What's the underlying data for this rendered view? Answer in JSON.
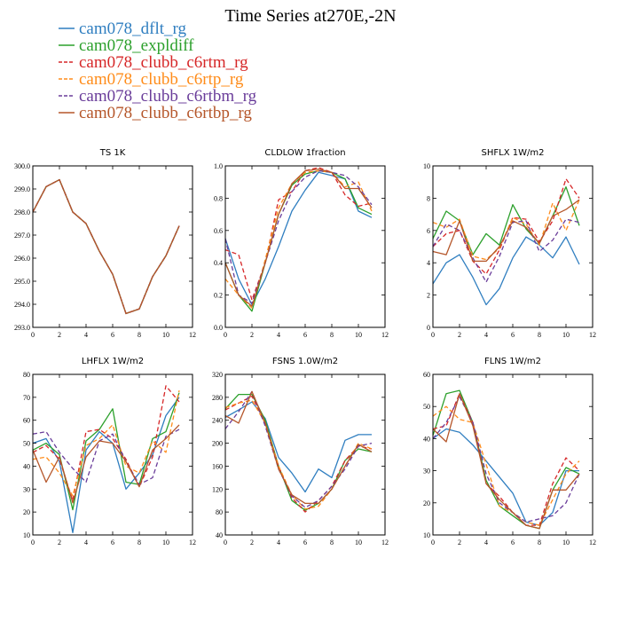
{
  "figure_title": "Time Series at270E,-2N",
  "colors": {
    "cam078_dflt_rg": "#2f7ec0",
    "cam078_expldiff": "#2ca02c",
    "cam078_clubb_c6rtm_rg": "#d62728",
    "cam078_clubb_c6rtp_rg": "#ff8c1a",
    "cam078_clubb_c6rtbm_rg": "#6a3d9a",
    "cam078_clubb_c6rtbp_rg": "#b5562a"
  },
  "legend": [
    {
      "name": "cam078_dflt_rg",
      "color": "#2f7ec0",
      "dash": "solid"
    },
    {
      "name": "cam078_expldiff",
      "color": "#2ca02c",
      "dash": "solid"
    },
    {
      "name": "cam078_clubb_c6rtm_rg",
      "color": "#d62728",
      "dash": "dashed"
    },
    {
      "name": "cam078_clubb_c6rtp_rg",
      "color": "#ff8c1a",
      "dash": "dashed"
    },
    {
      "name": "cam078_clubb_c6rtbm_rg",
      "color": "#6a3d9a",
      "dash": "dashed"
    },
    {
      "name": "cam078_clubb_c6rtbp_rg",
      "color": "#b5562a",
      "dash": "solid"
    }
  ],
  "chart_data": [
    {
      "type": "line",
      "title": "TS  1K",
      "x": [
        0,
        1,
        2,
        3,
        4,
        5,
        6,
        7,
        8,
        9,
        10,
        11
      ],
      "xlim": [
        0,
        12
      ],
      "xticks": [
        0,
        2,
        4,
        6,
        8,
        10,
        12
      ],
      "ylim": [
        293.0,
        300.0
      ],
      "yticks": [
        "293.0",
        "294.0",
        "295.0",
        "296.0",
        "297.0",
        "298.0",
        "299.0",
        "300.0"
      ],
      "series": [
        {
          "name": "cam078_dflt_rg",
          "values": [
            298.0,
            299.1,
            299.4,
            298.0,
            297.5,
            296.3,
            295.3,
            293.6,
            293.8,
            295.2,
            296.1,
            297.4
          ]
        },
        {
          "name": "cam078_expldiff",
          "values": [
            298.0,
            299.1,
            299.4,
            298.0,
            297.5,
            296.3,
            295.3,
            293.6,
            293.8,
            295.2,
            296.1,
            297.4
          ]
        },
        {
          "name": "cam078_clubb_c6rtm_rg",
          "values": [
            298.0,
            299.1,
            299.4,
            298.0,
            297.5,
            296.3,
            295.3,
            293.6,
            293.8,
            295.2,
            296.1,
            297.4
          ]
        },
        {
          "name": "cam078_clubb_c6rtp_rg",
          "values": [
            298.0,
            299.1,
            299.4,
            298.0,
            297.5,
            296.3,
            295.3,
            293.6,
            293.8,
            295.2,
            296.1,
            297.4
          ]
        },
        {
          "name": "cam078_clubb_c6rtbm_rg",
          "values": [
            298.0,
            299.1,
            299.4,
            298.0,
            297.5,
            296.3,
            295.3,
            293.6,
            293.8,
            295.2,
            296.1,
            297.4
          ]
        },
        {
          "name": "cam078_clubb_c6rtbp_rg",
          "values": [
            298.0,
            299.1,
            299.4,
            298.0,
            297.5,
            296.3,
            295.3,
            293.6,
            293.8,
            295.2,
            296.1,
            297.4
          ]
        }
      ]
    },
    {
      "type": "line",
      "title": "CLDLOW  1fraction",
      "x": [
        0,
        1,
        2,
        3,
        4,
        5,
        6,
        7,
        8,
        9,
        10,
        11
      ],
      "xlim": [
        0,
        12
      ],
      "xticks": [
        0,
        2,
        4,
        6,
        8,
        10,
        12
      ],
      "ylim": [
        0.0,
        1.0
      ],
      "yticks": [
        "0.0",
        "0.2",
        "0.4",
        "0.6",
        "0.8",
        "1.0"
      ],
      "series": [
        {
          "name": "cam078_dflt_rg",
          "values": [
            0.55,
            0.3,
            0.14,
            0.3,
            0.5,
            0.72,
            0.85,
            0.96,
            0.94,
            0.92,
            0.72,
            0.68
          ]
        },
        {
          "name": "cam078_expldiff",
          "values": [
            0.4,
            0.2,
            0.1,
            0.4,
            0.7,
            0.88,
            0.95,
            0.97,
            0.96,
            0.92,
            0.74,
            0.7
          ]
        },
        {
          "name": "cam078_clubb_c6rtm_rg",
          "values": [
            0.48,
            0.45,
            0.17,
            0.4,
            0.79,
            0.84,
            0.97,
            0.99,
            0.96,
            0.82,
            0.75,
            0.77
          ]
        },
        {
          "name": "cam078_clubb_c6rtp_rg",
          "values": [
            0.3,
            0.2,
            0.12,
            0.42,
            0.74,
            0.89,
            0.96,
            0.97,
            0.96,
            0.87,
            0.9,
            0.72
          ]
        },
        {
          "name": "cam078_clubb_c6rtbm_rg",
          "values": [
            0.55,
            0.2,
            0.15,
            0.4,
            0.66,
            0.84,
            0.93,
            0.97,
            0.96,
            0.94,
            0.87,
            0.76
          ]
        },
        {
          "name": "cam078_clubb_c6rtbp_rg",
          "values": [
            0.4,
            0.2,
            0.13,
            0.4,
            0.7,
            0.89,
            0.97,
            0.98,
            0.96,
            0.86,
            0.86,
            0.74
          ]
        }
      ]
    },
    {
      "type": "line",
      "title": "SHFLX  1W/m2",
      "x": [
        0,
        1,
        2,
        3,
        4,
        5,
        6,
        7,
        8,
        9,
        10,
        11
      ],
      "xlim": [
        0,
        12
      ],
      "xticks": [
        0,
        2,
        4,
        6,
        8,
        10,
        12
      ],
      "ylim": [
        0,
        10
      ],
      "yticks": [
        "0",
        "2",
        "4",
        "6",
        "8",
        "10"
      ],
      "series": [
        {
          "name": "cam078_dflt_rg",
          "values": [
            2.7,
            4.0,
            4.5,
            3.1,
            1.4,
            2.4,
            4.3,
            5.6,
            5.1,
            4.3,
            5.6,
            3.9
          ]
        },
        {
          "name": "cam078_expldiff",
          "values": [
            5.5,
            7.2,
            6.6,
            4.5,
            5.8,
            5.1,
            7.6,
            6.1,
            5.2,
            6.9,
            8.7,
            6.3
          ]
        },
        {
          "name": "cam078_clubb_c6rtm_rg",
          "values": [
            5.0,
            5.8,
            6.0,
            4.1,
            3.3,
            4.8,
            6.8,
            6.7,
            5.3,
            6.6,
            9.2,
            8.0
          ]
        },
        {
          "name": "cam078_clubb_c6rtp_rg",
          "values": [
            6.5,
            6.2,
            6.7,
            4.4,
            4.2,
            4.9,
            6.8,
            6.4,
            5.1,
            7.7,
            6.0,
            7.9
          ]
        },
        {
          "name": "cam078_clubb_c6rtbm_rg",
          "values": [
            5.0,
            6.4,
            6.0,
            4.3,
            2.8,
            4.4,
            6.5,
            6.6,
            4.7,
            5.4,
            6.7,
            6.5
          ]
        },
        {
          "name": "cam078_clubb_c6rtbp_rg",
          "values": [
            4.7,
            4.5,
            6.6,
            4.1,
            4.1,
            5.0,
            6.6,
            6.2,
            5.2,
            6.9,
            7.3,
            7.9
          ]
        }
      ]
    },
    {
      "type": "line",
      "title": "LHFLX  1W/m2",
      "x": [
        0,
        1,
        2,
        3,
        4,
        5,
        6,
        7,
        8,
        9,
        10,
        11
      ],
      "xlim": [
        0,
        12
      ],
      "xticks": [
        0,
        2,
        4,
        6,
        8,
        10,
        12
      ],
      "ylim": [
        10,
        80
      ],
      "yticks": [
        "10",
        "20",
        "30",
        "40",
        "50",
        "60",
        "70",
        "80"
      ],
      "series": [
        {
          "name": "cam078_dflt_rg",
          "values": [
            50,
            52,
            42,
            11,
            47,
            55,
            50,
            30,
            37,
            45,
            62,
            70
          ]
        },
        {
          "name": "cam078_expldiff",
          "values": [
            47,
            50,
            45,
            21,
            51,
            56,
            65,
            33,
            32,
            52,
            55,
            72
          ]
        },
        {
          "name": "cam078_clubb_c6rtm_rg",
          "values": [
            46,
            49,
            43,
            25,
            55,
            56,
            52,
            43,
            31,
            44,
            75,
            68
          ]
        },
        {
          "name": "cam078_clubb_c6rtp_rg",
          "values": [
            43,
            44,
            37,
            27,
            49,
            52,
            58,
            40,
            37,
            51,
            46,
            73
          ]
        },
        {
          "name": "cam078_clubb_c6rtbm_rg",
          "values": [
            54,
            55,
            46,
            39,
            33,
            51,
            54,
            42,
            32,
            35,
            53,
            56
          ]
        },
        {
          "name": "cam078_clubb_c6rtbp_rg",
          "values": [
            47,
            33,
            44,
            24,
            44,
            51,
            50,
            42,
            31,
            47,
            52,
            58
          ]
        }
      ]
    },
    {
      "type": "line",
      "title": "FSNS  1.0W/m2",
      "x": [
        0,
        1,
        2,
        3,
        4,
        5,
        6,
        7,
        8,
        9,
        10,
        11
      ],
      "xlim": [
        0,
        12
      ],
      "xticks": [
        0,
        2,
        4,
        6,
        8,
        10,
        12
      ],
      "ylim": [
        40,
        320
      ],
      "yticks": [
        "40",
        "80",
        "120",
        "160",
        "200",
        "240",
        "280",
        "320"
      ],
      "series": [
        {
          "name": "cam078_dflt_rg",
          "values": [
            245,
            258,
            272,
            243,
            175,
            148,
            115,
            155,
            140,
            205,
            215,
            215
          ]
        },
        {
          "name": "cam078_expldiff",
          "values": [
            260,
            285,
            285,
            240,
            160,
            100,
            83,
            95,
            120,
            170,
            190,
            185
          ]
        },
        {
          "name": "cam078_clubb_c6rtm_rg",
          "values": [
            258,
            270,
            282,
            235,
            160,
            105,
            80,
            100,
            125,
            170,
            195,
            190
          ]
        },
        {
          "name": "cam078_clubb_c6rtp_rg",
          "values": [
            262,
            270,
            275,
            235,
            160,
            110,
            85,
            90,
            120,
            160,
            200,
            190
          ]
        },
        {
          "name": "cam078_clubb_c6rtbm_rg",
          "values": [
            225,
            255,
            290,
            230,
            155,
            108,
            88,
            100,
            125,
            155,
            195,
            200
          ]
        },
        {
          "name": "cam078_clubb_c6rtbp_rg",
          "values": [
            248,
            235,
            290,
            235,
            155,
            110,
            95,
            95,
            120,
            160,
            198,
            185
          ]
        }
      ]
    },
    {
      "type": "line",
      "title": "FLNS  1W/m2",
      "x": [
        0,
        1,
        2,
        3,
        4,
        5,
        6,
        7,
        8,
        9,
        10,
        11
      ],
      "xlim": [
        0,
        12
      ],
      "xticks": [
        0,
        2,
        4,
        6,
        8,
        10,
        12
      ],
      "ylim": [
        10,
        60
      ],
      "yticks": [
        "10",
        "20",
        "30",
        "40",
        "50",
        "60"
      ],
      "series": [
        {
          "name": "cam078_dflt_rg",
          "values": [
            40,
            43,
            42,
            38,
            33,
            28,
            23,
            14,
            13,
            17,
            30,
            30
          ]
        },
        {
          "name": "cam078_expldiff",
          "values": [
            41,
            54,
            55,
            45,
            27,
            19,
            16,
            13,
            12,
            24,
            31,
            29
          ]
        },
        {
          "name": "cam078_clubb_c6rtm_rg",
          "values": [
            43,
            44,
            54,
            45,
            26,
            22,
            17,
            13,
            13,
            26,
            34,
            30
          ]
        },
        {
          "name": "cam078_clubb_c6rtp_rg",
          "values": [
            47,
            50,
            46,
            45,
            32,
            19,
            17,
            14,
            13,
            21,
            29,
            33
          ]
        },
        {
          "name": "cam078_clubb_c6rtbm_rg",
          "values": [
            40,
            45,
            53,
            45,
            29,
            20,
            17,
            14,
            15,
            16,
            20,
            29
          ]
        },
        {
          "name": "cam078_clubb_c6rtbp_rg",
          "values": [
            43,
            39,
            54,
            44,
            26,
            21,
            17,
            13,
            12,
            24,
            24,
            29
          ]
        }
      ]
    }
  ]
}
